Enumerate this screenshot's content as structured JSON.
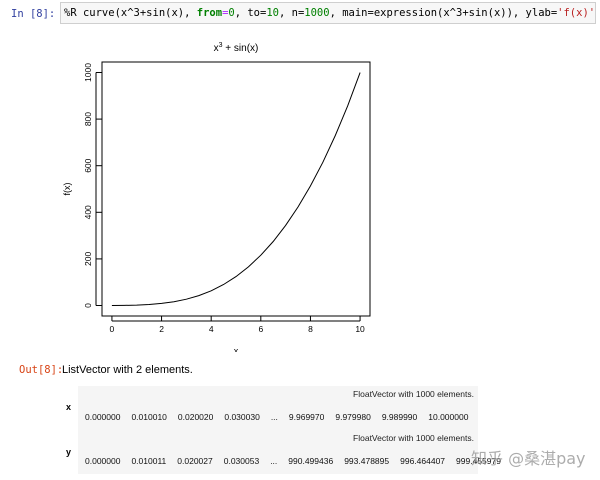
{
  "input_cell": {
    "prompt": "In  [8]:",
    "code_tokens": [
      {
        "t": "%R curve(x^3+sin(x), ",
        "c": ""
      },
      {
        "t": "from",
        "c": "tk-kw"
      },
      {
        "t": "=",
        "c": "tk-eq"
      },
      {
        "t": "0",
        "c": "tk-num"
      },
      {
        "t": ", to=",
        "c": ""
      },
      {
        "t": "10",
        "c": "tk-num"
      },
      {
        "t": ", n=",
        "c": ""
      },
      {
        "t": "1000",
        "c": "tk-num"
      },
      {
        "t": ", main=expression(x^3+sin(x)), ylab=",
        "c": ""
      },
      {
        "t": "'f(x)'",
        "c": "tk-str"
      },
      {
        "t": ")",
        "c": ""
      }
    ]
  },
  "chart_data": {
    "type": "line",
    "title": "x³ + sin(x)",
    "xlabel": "x",
    "ylabel": "f(x)",
    "xlim": [
      0,
      10
    ],
    "ylim": [
      0,
      1000
    ],
    "x_ticks": [
      "0",
      "2",
      "4",
      "6",
      "8",
      "10"
    ],
    "y_ticks": [
      "0",
      "200",
      "400",
      "600",
      "800",
      "1000"
    ],
    "series": [
      {
        "x": [
          0,
          0.5,
          1,
          1.5,
          2,
          2.5,
          3,
          3.5,
          4,
          4.5,
          5,
          5.5,
          6,
          6.5,
          7,
          7.5,
          8,
          8.5,
          9,
          9.5,
          10
        ],
        "values": [
          0,
          0.6,
          1.8,
          4.4,
          8.9,
          16.2,
          27.1,
          42.5,
          63.2,
          90.1,
          124.0,
          165.7,
          215.7,
          274.8,
          343.7,
          422.8,
          513.0,
          614.9,
          729.4,
          857.2,
          999.5
        ]
      }
    ],
    "grid": false
  },
  "output_cell": {
    "prompt": "Out[8]:",
    "summary": "ListVector with 2 elements.",
    "rows": [
      {
        "label": "x",
        "header": "FloatVector with 1000 elements.",
        "cells": [
          "0.000000",
          "0.010010",
          "0.020020",
          "0.030030",
          "...",
          "9.969970",
          "9.979980",
          "9.989990",
          "10.000000"
        ]
      },
      {
        "label": "y",
        "header": "FloatVector with 1000 elements.",
        "cells": [
          "0.000000",
          "0.010011",
          "0.020027",
          "0.030053",
          "...",
          "990.499436",
          "993.478895",
          "996.464407",
          "999.455979"
        ]
      }
    ]
  },
  "watermark": "知乎 @桑湛pay"
}
